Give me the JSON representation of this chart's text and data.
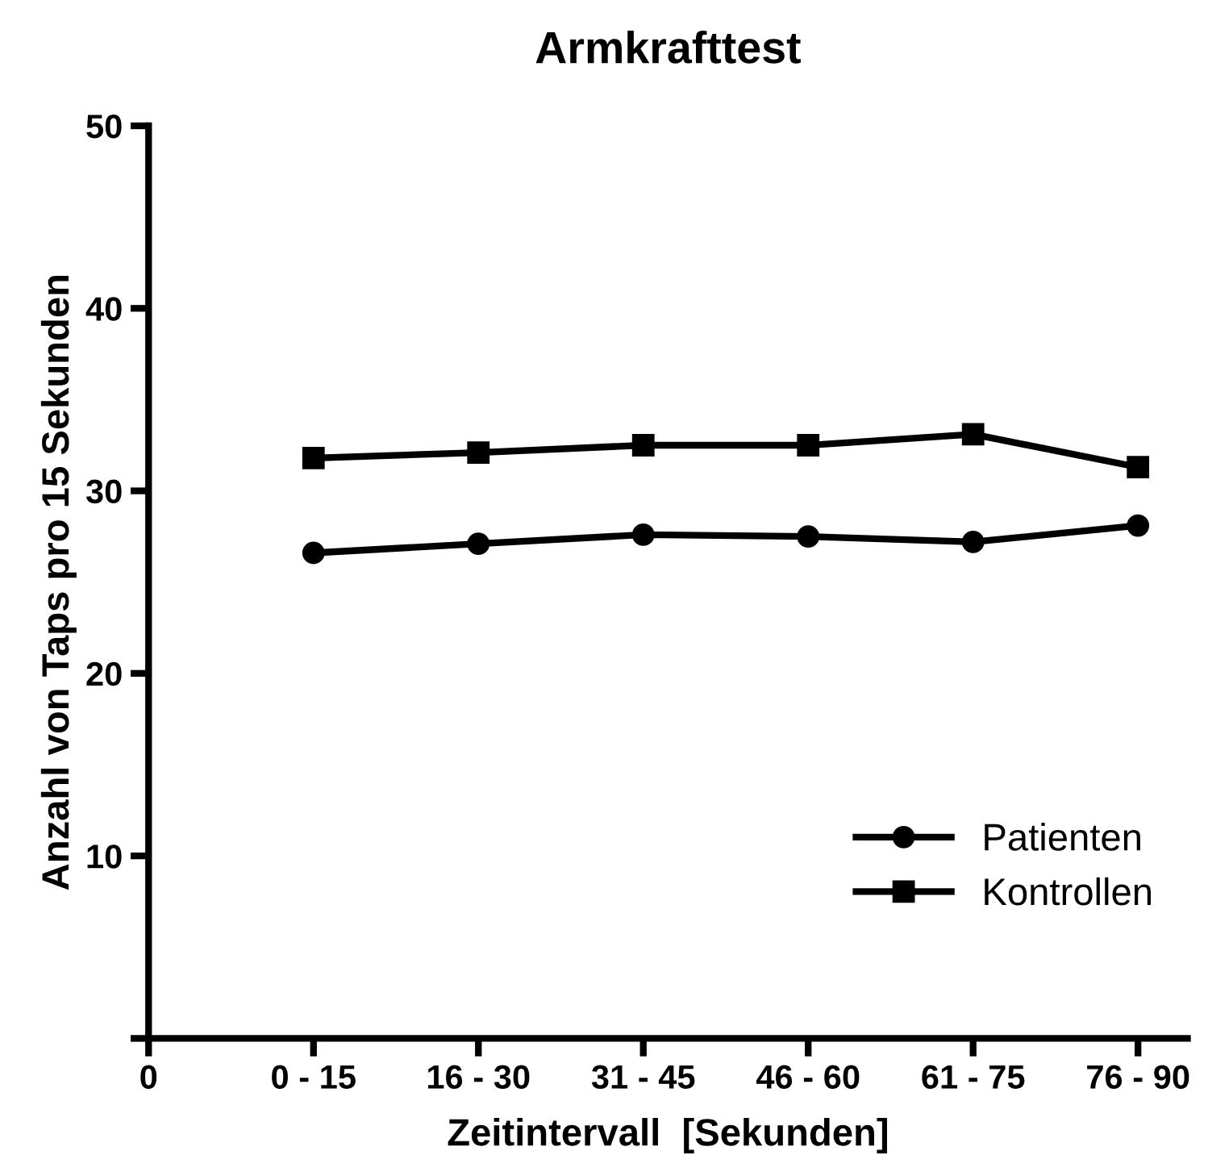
{
  "chart_data": {
    "type": "line",
    "title": "Armkrafttest",
    "xlabel": "Zeitintervall  [Sekunden]",
    "ylabel": "Anzahl von Taps pro 15 Sekunden",
    "categories": [
      "0",
      "0 - 15",
      "16 - 30",
      "31 - 45",
      "46 - 60",
      "61 - 75",
      "76 - 90"
    ],
    "ylim": [
      0,
      50
    ],
    "yticks": [
      {
        "value": 0,
        "label": null
      },
      10,
      20,
      30,
      40,
      50
    ],
    "series": [
      {
        "name": "Patienten",
        "color": "#000000",
        "marker": "circle",
        "values": [
          null,
          26.6,
          27.1,
          27.6,
          27.5,
          27.2,
          28.1
        ]
      },
      {
        "name": "Kontrollen",
        "color": "#000000",
        "marker": "square",
        "values": [
          null,
          31.8,
          32.1,
          32.5,
          32.5,
          33.1,
          31.3
        ]
      }
    ],
    "legend": "bottom right",
    "grid": false
  }
}
